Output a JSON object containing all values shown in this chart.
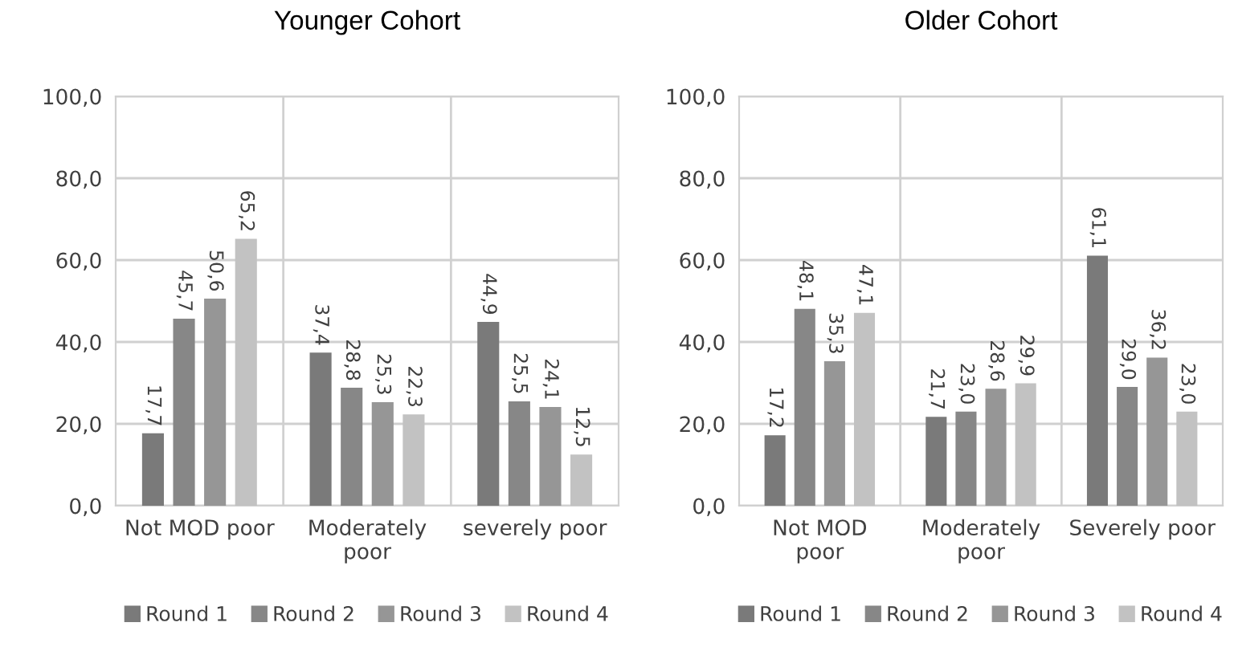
{
  "chart_data": [
    {
      "type": "bar",
      "title": "Younger Cohort",
      "categories": [
        "Not MOD poor",
        "Moderately\npoor",
        "severely poor"
      ],
      "series": [
        {
          "name": "Round 1",
          "color": "#7a7a7a",
          "values": [
            17.7,
            37.4,
            44.9
          ],
          "value_labels": [
            "17,7",
            "37,4",
            "44,9"
          ]
        },
        {
          "name": "Round 2",
          "color": "#878787",
          "values": [
            45.7,
            28.8,
            25.5
          ],
          "value_labels": [
            "45,7",
            "28,8",
            "25,5"
          ]
        },
        {
          "name": "Round 3",
          "color": "#969696",
          "values": [
            50.6,
            25.3,
            24.1
          ],
          "value_labels": [
            "50,6",
            "25,3",
            "24,1"
          ]
        },
        {
          "name": "Round 4",
          "color": "#c2c2c2",
          "values": [
            65.2,
            22.3,
            12.5
          ],
          "value_labels": [
            "65,2",
            "22,3",
            "12,5"
          ]
        }
      ],
      "ylim": [
        0,
        100
      ],
      "yticks": [
        {
          "value": 0,
          "label": "0,0"
        },
        {
          "value": 20,
          "label": "20,0"
        },
        {
          "value": 40,
          "label": "40,0"
        },
        {
          "value": 60,
          "label": "60,0"
        },
        {
          "value": 80,
          "label": "80,0"
        },
        {
          "value": 100,
          "label": "100,0"
        }
      ],
      "grid": true,
      "legend": "bottom"
    },
    {
      "type": "bar",
      "title": "Older Cohort",
      "categories": [
        "Not MOD\npoor",
        "Moderately\npoor",
        "Severely poor"
      ],
      "series": [
        {
          "name": "Round 1",
          "color": "#7a7a7a",
          "values": [
            17.2,
            21.7,
            61.1
          ],
          "value_labels": [
            "17,2",
            "21,7",
            "61,1"
          ]
        },
        {
          "name": "Round 2",
          "color": "#878787",
          "values": [
            48.1,
            23.0,
            29.0
          ],
          "value_labels": [
            "48,1",
            "23,0",
            "29,0"
          ]
        },
        {
          "name": "Round 3",
          "color": "#969696",
          "values": [
            35.3,
            28.6,
            36.2
          ],
          "value_labels": [
            "35,3",
            "28,6",
            "36,2"
          ]
        },
        {
          "name": "Round 4",
          "color": "#c2c2c2",
          "values": [
            47.1,
            29.9,
            23.0
          ],
          "value_labels": [
            "47,1",
            "29,9",
            "23,0"
          ]
        }
      ],
      "ylim": [
        0,
        100
      ],
      "yticks": [
        {
          "value": 0,
          "label": "0,0"
        },
        {
          "value": 20,
          "label": "20,0"
        },
        {
          "value": 40,
          "label": "40,0"
        },
        {
          "value": 60,
          "label": "60,0"
        },
        {
          "value": 80,
          "label": "80,0"
        },
        {
          "value": 100,
          "label": "100,0"
        }
      ],
      "grid": true,
      "legend": "bottom"
    }
  ]
}
